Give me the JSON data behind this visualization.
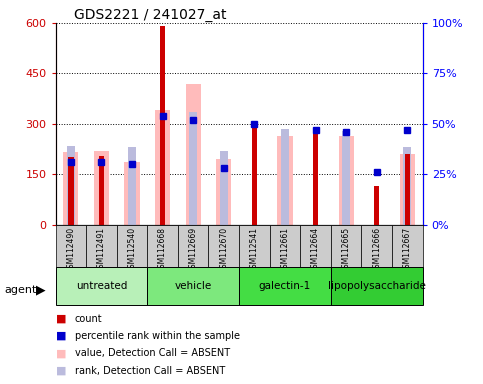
{
  "title": "GDS2221 / 241027_at",
  "samples": [
    "GSM112490",
    "GSM112491",
    "GSM112540",
    "GSM112668",
    "GSM112669",
    "GSM112670",
    "GSM112541",
    "GSM112661",
    "GSM112664",
    "GSM112665",
    "GSM112666",
    "GSM112667"
  ],
  "groups": [
    {
      "label": "untreated",
      "color": "#b8f0b8",
      "start": 0,
      "end": 2
    },
    {
      "label": "vehicle",
      "color": "#7de87d",
      "start": 3,
      "end": 5
    },
    {
      "label": "galectin-1",
      "color": "#44dd44",
      "start": 6,
      "end": 8
    },
    {
      "label": "lipopolysaccharide",
      "color": "#33cc33",
      "start": 9,
      "end": 11
    }
  ],
  "count_values": [
    200,
    205,
    null,
    590,
    null,
    null,
    295,
    null,
    275,
    null,
    115,
    210
  ],
  "value_absent": [
    215,
    220,
    185,
    340,
    420,
    195,
    null,
    265,
    null,
    265,
    null,
    210
  ],
  "rank_absent": [
    235,
    null,
    230,
    null,
    335,
    220,
    null,
    285,
    null,
    280,
    null,
    230
  ],
  "percentile_rank": [
    31,
    31,
    30,
    54,
    52,
    28,
    50,
    null,
    47,
    46,
    26,
    47
  ],
  "count_color": "#cc0000",
  "percentile_color": "#0000cc",
  "value_absent_color": "#ffbbbb",
  "rank_absent_color": "#bbbbdd",
  "ylim_left": [
    0,
    600
  ],
  "ylim_right": [
    0,
    100
  ],
  "yticks_left": [
    0,
    150,
    300,
    450,
    600
  ],
  "yticks_right": [
    0,
    25,
    50,
    75,
    100
  ],
  "ytick_labels_left": [
    "0",
    "150",
    "300",
    "450",
    "600"
  ],
  "ytick_labels_right": [
    "0%",
    "25%",
    "50%",
    "75%",
    "100%"
  ],
  "bar_width": 0.5,
  "narrow_bar_width": 0.18,
  "group_box_color": "#cccccc",
  "agent_label": "agent"
}
